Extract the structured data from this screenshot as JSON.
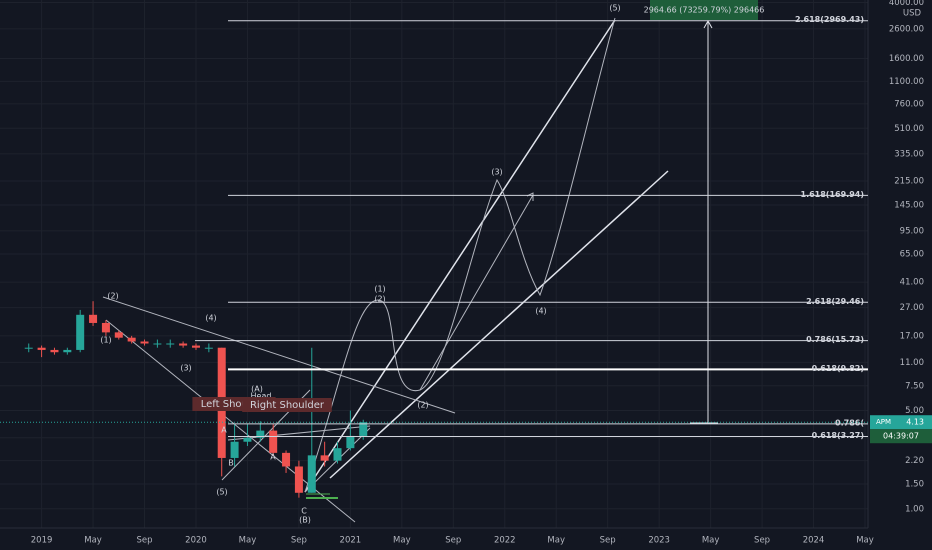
{
  "chart_data": {
    "type": "candlestick",
    "x": [
      "2018-12",
      "2019-01",
      "2019-02",
      "2019-03",
      "2019-04",
      "2019-05",
      "2019-06",
      "2019-07",
      "2019-08",
      "2019-09",
      "2019-10",
      "2019-11",
      "2019-12",
      "2020-01",
      "2020-02",
      "2020-03",
      "2020-04",
      "2020-05",
      "2020-06",
      "2020-07",
      "2020-08",
      "2020-09",
      "2020-10",
      "2020-11",
      "2020-12",
      "2021-01",
      "2021-02"
    ],
    "open": [
      14,
      14,
      13.5,
      13,
      13.5,
      24,
      21,
      18,
      16.5,
      15.5,
      15,
      15,
      15,
      14.5,
      14,
      14,
      2.3,
      3.0,
      3.2,
      3.6,
      2.5,
      2.0,
      1.3,
      2.4,
      2.2,
      2.7,
      3.3
    ],
    "high": [
      15,
      14.5,
      14,
      14,
      26,
      30,
      22,
      18.5,
      17,
      16,
      16,
      16,
      15.5,
      15,
      15,
      14,
      4.0,
      4.0,
      4.2,
      4.0,
      2.6,
      2.2,
      14,
      3.0,
      3.0,
      5.0,
      4.3
    ],
    "low": [
      13,
      12,
      12.5,
      12.5,
      13,
      20,
      17,
      16,
      15,
      14.5,
      14,
      14,
      14,
      13.5,
      13,
      1.7,
      2.0,
      2.8,
      3.0,
      2.4,
      1.8,
      1.2,
      1.3,
      2.0,
      2.1,
      2.6,
      3.1
    ],
    "close": [
      14,
      13.5,
      13,
      13.5,
      24,
      21,
      18,
      16.5,
      15.5,
      15,
      15,
      15,
      14.5,
      14,
      14,
      2.3,
      3.0,
      3.2,
      3.6,
      2.5,
      2.0,
      1.3,
      2.4,
      2.2,
      2.7,
      3.3,
      4.13
    ],
    "up_color": "#26a69a",
    "down_color": "#ef5350",
    "log_scale": true,
    "grid": true,
    "xlim": [
      "2018-10",
      "2024-05"
    ],
    "xticks": [
      {
        "value": "2019-01",
        "label": "2019"
      },
      {
        "value": "2019-05",
        "label": "May"
      },
      {
        "value": "2019-09",
        "label": "Sep"
      },
      {
        "value": "2020-01",
        "label": "2020"
      },
      {
        "value": "2020-05",
        "label": "May"
      },
      {
        "value": "2020-09",
        "label": "Sep"
      },
      {
        "value": "2021-01",
        "label": "2021"
      },
      {
        "value": "2021-05",
        "label": "May"
      },
      {
        "value": "2021-09",
        "label": "Sep"
      },
      {
        "value": "2022-01",
        "label": "2022"
      },
      {
        "value": "2022-05",
        "label": "May"
      },
      {
        "value": "2022-09",
        "label": "Sep"
      },
      {
        "value": "2023-01",
        "label": "2023"
      },
      {
        "value": "2023-05",
        "label": "May"
      },
      {
        "value": "2023-09",
        "label": "Sep"
      },
      {
        "value": "2024-01",
        "label": "2024"
      },
      {
        "value": "2024-05",
        "label": "May"
      }
    ],
    "ylim": [
      0.73,
      4170
    ],
    "yticks": [
      {
        "value": 4000,
        "label": "4000.00"
      },
      {
        "value": 2600,
        "label": "2600.00"
      },
      {
        "value": 1600,
        "label": "1600.00"
      },
      {
        "value": 1100,
        "label": "1100.00"
      },
      {
        "value": 760,
        "label": "760.00"
      },
      {
        "value": 510,
        "label": "510.00"
      },
      {
        "value": 335,
        "label": "335.00"
      },
      {
        "value": 215,
        "label": "215.00"
      },
      {
        "value": 145,
        "label": "145.00"
      },
      {
        "value": 95,
        "label": "95.00"
      },
      {
        "value": 65,
        "label": "65.00"
      },
      {
        "value": 41,
        "label": "41.00"
      },
      {
        "value": 27,
        "label": "27.00"
      },
      {
        "value": 17,
        "label": "17.00"
      },
      {
        "value": 11,
        "label": "11.00"
      },
      {
        "value": 7.5,
        "label": "7.50"
      },
      {
        "value": 5,
        "label": "5.00"
      },
      {
        "value": 3.2,
        "label": "3.20"
      },
      {
        "value": 2.2,
        "label": "2.20"
      },
      {
        "value": 1.5,
        "label": "1.50"
      },
      {
        "value": 1,
        "label": "1.00"
      }
    ],
    "currency": "USD",
    "levels": [
      {
        "label": "2.618(2969.43)",
        "value": 2969.43
      },
      {
        "label": "1.618(169.94)",
        "value": 169.94
      },
      {
        "label": "2.618(29.46)",
        "value": 29.46
      },
      {
        "label": "0.786(15.73)",
        "value": 15.73
      },
      {
        "label": "0.618(9.82)",
        "value": 9.82
      },
      {
        "label": "0.786(",
        "value": 4.02
      },
      {
        "label": "0.618(3.27)",
        "value": 3.27
      }
    ],
    "last_price": {
      "symbol": "APM",
      "value": 4.13,
      "countdown": "04:39:07"
    },
    "measure": "2964.66 (73259.79%) 296466",
    "annotations": [
      "(5)",
      "(3)",
      "(1)",
      "(2)",
      "(4)",
      "(2)",
      "(2)",
      "(1)",
      "(4)",
      "(3)",
      "(A)",
      "Head",
      "Left Shoulder",
      "Right Shoulder",
      "A",
      "B",
      "A",
      "(5)",
      "C",
      "(B)"
    ]
  }
}
